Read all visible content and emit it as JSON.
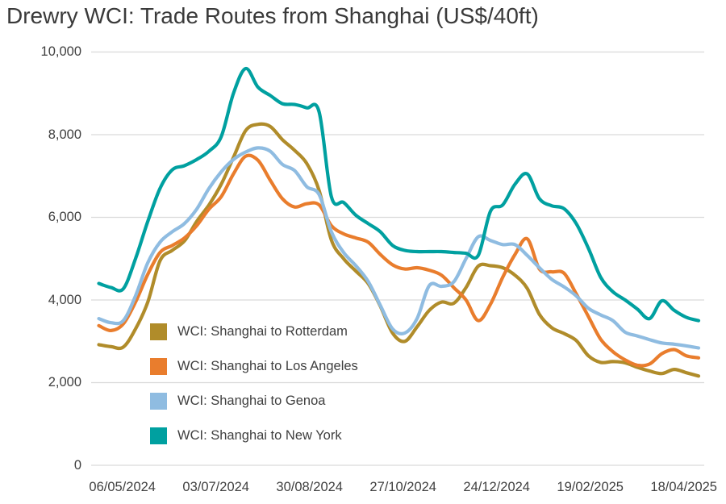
{
  "title": "Drewry WCI: Trade Routes from Shanghai (US$/40ft)",
  "colors": {
    "background": "#ffffff",
    "title_text": "#3a3a3a",
    "axis_text": "#3f3f3f",
    "gridline": "#dadada"
  },
  "chart_data": {
    "type": "line",
    "title": "Drewry WCI: Trade Routes from Shanghai (US$/40ft)",
    "grid": "horizontal",
    "legend_position": "inside-lower-left",
    "x_axis": {
      "tick_labels": [
        "06/05/2024",
        "03/07/2024",
        "30/08/2024",
        "27/10/2024",
        "24/12/2024",
        "19/02/2025",
        "18/04/2025"
      ],
      "cadence": "weekly samples, approx. Apr 2024 - Apr 2025"
    },
    "y_axis": {
      "tick_labels": [
        "0",
        "2,000",
        "4,000",
        "6,000",
        "8,000",
        "10,000"
      ],
      "tick_values": [
        0,
        2000,
        4000,
        6000,
        8000,
        10000
      ],
      "min": 0,
      "max": 10000
    },
    "series": [
      {
        "name": "WCI: Shanghai to Rotterdam",
        "color": "#b08c2a",
        "values": [
          2920,
          2870,
          2860,
          3300,
          3950,
          4950,
          5200,
          5430,
          5900,
          6300,
          6800,
          7450,
          8100,
          8250,
          8200,
          7880,
          7620,
          7300,
          6650,
          5450,
          5000,
          4700,
          4400,
          3850,
          3200,
          3000,
          3350,
          3750,
          3950,
          3920,
          4300,
          4820,
          4830,
          4780,
          4600,
          4280,
          3650,
          3330,
          3190,
          3020,
          2650,
          2490,
          2510,
          2480,
          2370,
          2280,
          2220,
          2320,
          2240,
          2160
        ]
      },
      {
        "name": "WCI: Shanghai to Los Angeles",
        "color": "#e97d2d",
        "values": [
          3380,
          3260,
          3420,
          3950,
          4620,
          5150,
          5320,
          5500,
          5800,
          6200,
          6500,
          7050,
          7480,
          7380,
          6900,
          6450,
          6250,
          6330,
          6300,
          5800,
          5600,
          5500,
          5400,
          5100,
          4850,
          4750,
          4780,
          4720,
          4600,
          4300,
          4000,
          3500,
          3900,
          4550,
          5100,
          5480,
          4750,
          4680,
          4650,
          4150,
          3600,
          3050,
          2750,
          2550,
          2420,
          2450,
          2700,
          2800,
          2650,
          2600
        ]
      },
      {
        "name": "WCI: Shanghai to Genoa",
        "color": "#8fbce1",
        "values": [
          3550,
          3450,
          3500,
          4100,
          4900,
          5400,
          5650,
          5850,
          6200,
          6700,
          7100,
          7400,
          7580,
          7680,
          7600,
          7280,
          7130,
          6740,
          6550,
          5650,
          5150,
          4830,
          4450,
          3870,
          3300,
          3200,
          3550,
          4350,
          4330,
          4440,
          5000,
          5530,
          5440,
          5340,
          5340,
          5080,
          4780,
          4500,
          4320,
          4100,
          3800,
          3640,
          3500,
          3220,
          3130,
          3040,
          2960,
          2930,
          2890,
          2840
        ]
      },
      {
        "name": "WCI: Shanghai to New York",
        "color": "#00a0a0",
        "values": [
          4400,
          4300,
          4270,
          5000,
          5900,
          6700,
          7150,
          7250,
          7400,
          7600,
          7950,
          9000,
          9600,
          9150,
          8950,
          8750,
          8730,
          8650,
          8550,
          6500,
          6360,
          6050,
          5850,
          5650,
          5320,
          5200,
          5170,
          5170,
          5170,
          5150,
          5130,
          5080,
          6150,
          6300,
          6800,
          7050,
          6450,
          6280,
          6210,
          5850,
          5250,
          4550,
          4200,
          4000,
          3780,
          3550,
          3980,
          3750,
          3580,
          3500
        ]
      }
    ]
  }
}
